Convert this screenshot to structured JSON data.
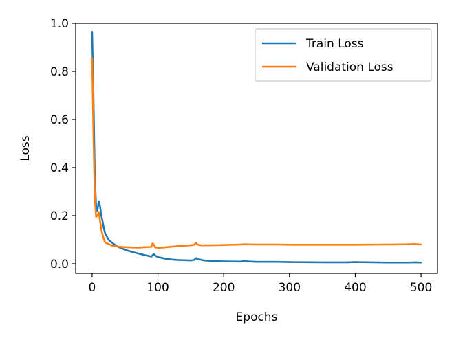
{
  "chart_data": {
    "type": "line",
    "title": "",
    "xlabel": "Epochs",
    "ylabel": "Loss",
    "xlim": [
      -25,
      525
    ],
    "ylim": [
      -0.04,
      1.0
    ],
    "xticks": [
      0,
      100,
      200,
      300,
      400,
      500
    ],
    "xtick_labels": [
      "0",
      "100",
      "200",
      "300",
      "400",
      "500"
    ],
    "yticks": [
      0.0,
      0.2,
      0.4,
      0.6,
      0.8,
      1.0
    ],
    "ytick_labels": [
      "0.0",
      "0.2",
      "0.4",
      "0.6",
      "0.8",
      "1.0"
    ],
    "grid": false,
    "legend_position": "top-right",
    "series": [
      {
        "name": "Train Loss",
        "color": "#1f77b4",
        "x": [
          0,
          2,
          4,
          6,
          8,
          10,
          12,
          14,
          16,
          18,
          20,
          25,
          30,
          35,
          40,
          50,
          60,
          70,
          80,
          90,
          92,
          94,
          96,
          100,
          110,
          120,
          130,
          140,
          150,
          155,
          158,
          160,
          165,
          170,
          180,
          200,
          225,
          230,
          250,
          280,
          300,
          350,
          390,
          400,
          450,
          480,
          490,
          500
        ],
        "y": [
          0.965,
          0.7,
          0.38,
          0.24,
          0.22,
          0.26,
          0.24,
          0.2,
          0.175,
          0.145,
          0.125,
          0.1,
          0.088,
          0.078,
          0.07,
          0.058,
          0.05,
          0.043,
          0.036,
          0.03,
          0.036,
          0.04,
          0.034,
          0.028,
          0.022,
          0.018,
          0.016,
          0.015,
          0.014,
          0.016,
          0.024,
          0.02,
          0.017,
          0.014,
          0.012,
          0.01,
          0.009,
          0.011,
          0.008,
          0.008,
          0.007,
          0.006,
          0.006,
          0.007,
          0.005,
          0.005,
          0.006,
          0.005
        ]
      },
      {
        "name": "Validation Loss",
        "color": "#ff7f0e",
        "x": [
          0,
          2,
          4,
          6,
          8,
          10,
          12,
          14,
          16,
          18,
          20,
          25,
          30,
          35,
          40,
          50,
          60,
          70,
          80,
          90,
          92,
          94,
          96,
          100,
          110,
          120,
          130,
          140,
          150,
          155,
          158,
          160,
          165,
          170,
          180,
          200,
          225,
          230,
          250,
          280,
          300,
          350,
          390,
          400,
          450,
          480,
          490,
          500
        ],
        "y": [
          0.855,
          0.55,
          0.28,
          0.195,
          0.2,
          0.215,
          0.18,
          0.14,
          0.12,
          0.1,
          0.088,
          0.082,
          0.076,
          0.073,
          0.071,
          0.069,
          0.068,
          0.067,
          0.069,
          0.07,
          0.085,
          0.078,
          0.068,
          0.066,
          0.068,
          0.071,
          0.073,
          0.075,
          0.077,
          0.079,
          0.087,
          0.08,
          0.077,
          0.077,
          0.077,
          0.078,
          0.08,
          0.081,
          0.08,
          0.08,
          0.079,
          0.079,
          0.079,
          0.079,
          0.08,
          0.081,
          0.082,
          0.08
        ]
      }
    ]
  }
}
